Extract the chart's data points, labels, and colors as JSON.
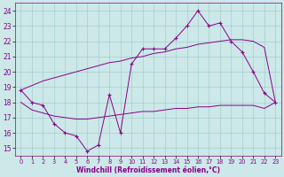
{
  "xlabel": "Windchill (Refroidissement éolien,°C)",
  "x": [
    0,
    1,
    2,
    3,
    4,
    5,
    6,
    7,
    8,
    9,
    10,
    11,
    12,
    13,
    14,
    15,
    16,
    17,
    18,
    19,
    20,
    21,
    22,
    23
  ],
  "line_wiggly": [
    18.8,
    18.0,
    17.8,
    16.6,
    16.0,
    15.8,
    14.8,
    15.2,
    18.5,
    16.0,
    20.5,
    21.5,
    21.5,
    21.5,
    22.2,
    23.0,
    24.0,
    23.0,
    23.2,
    22.0,
    21.3,
    20.0,
    18.6,
    18.0
  ],
  "line_upper_straight": [
    18.8,
    19.1,
    19.4,
    19.6,
    19.8,
    20.0,
    20.2,
    20.4,
    20.6,
    20.7,
    20.9,
    21.0,
    21.2,
    21.3,
    21.5,
    21.6,
    21.8,
    21.9,
    22.0,
    22.1,
    22.1,
    22.0,
    21.6,
    18.0
  ],
  "line_lower_straight": [
    18.0,
    17.5,
    17.3,
    17.1,
    17.0,
    16.9,
    16.9,
    17.0,
    17.1,
    17.2,
    17.3,
    17.4,
    17.4,
    17.5,
    17.6,
    17.6,
    17.7,
    17.7,
    17.8,
    17.8,
    17.8,
    17.8,
    17.6,
    18.0
  ],
  "bg_color": "#cce8e8",
  "line_color": "#880088",
  "ylim": [
    14.5,
    24.5
  ],
  "xlim": [
    -0.5,
    23.5
  ],
  "yticks": [
    15,
    16,
    17,
    18,
    19,
    20,
    21,
    22,
    23,
    24
  ],
  "xticks": [
    0,
    1,
    2,
    3,
    4,
    5,
    6,
    7,
    8,
    9,
    10,
    11,
    12,
    13,
    14,
    15,
    16,
    17,
    18,
    19,
    20,
    21,
    22,
    23
  ]
}
